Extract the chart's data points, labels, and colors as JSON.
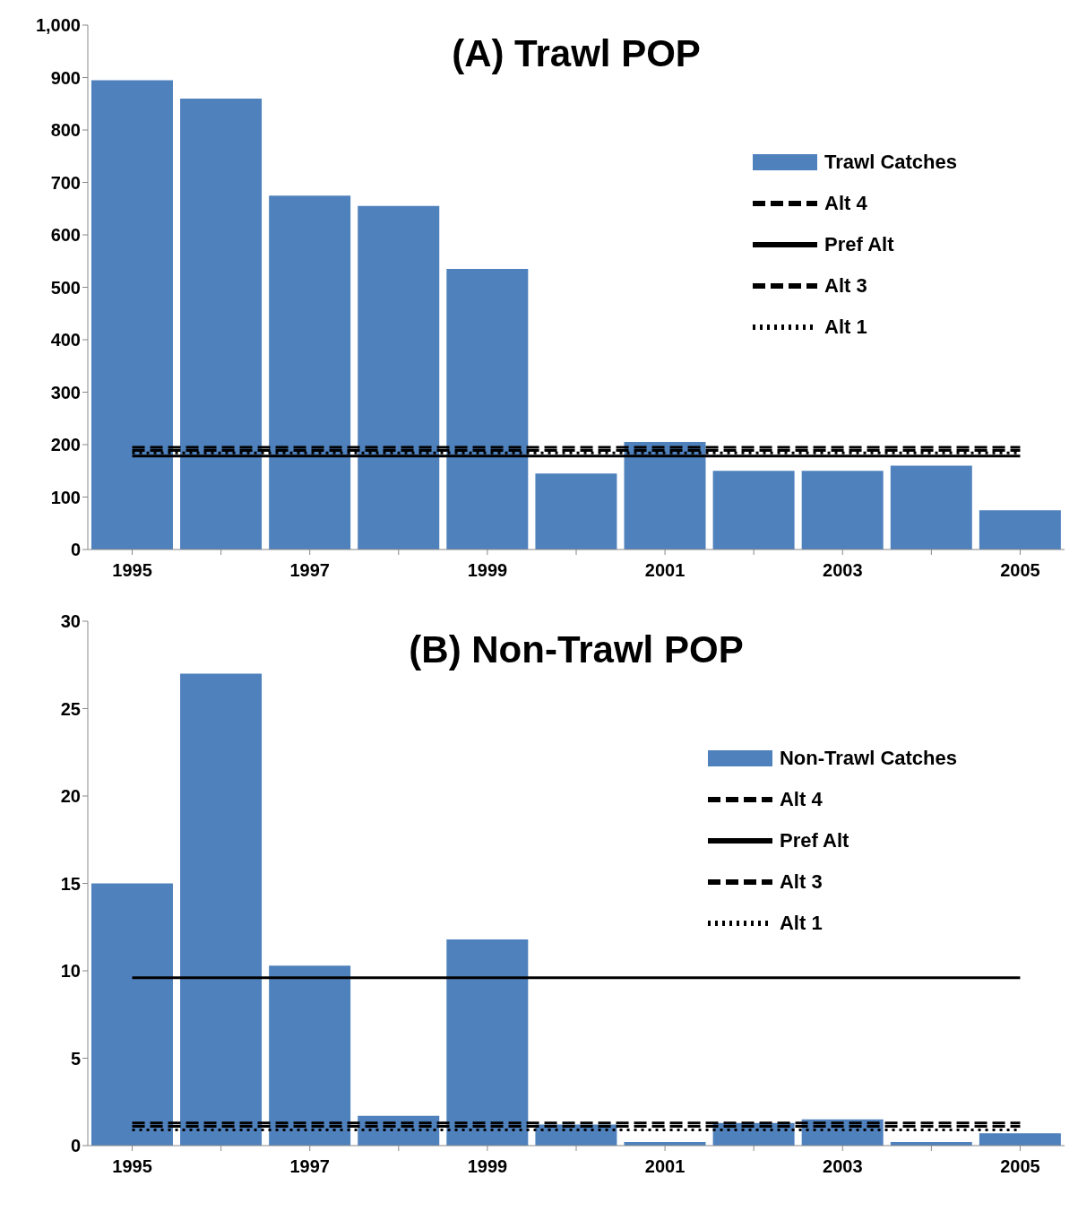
{
  "chart_data": [
    {
      "type": "bar",
      "title": "(A) Trawl POP",
      "categories": [
        "1995",
        null,
        "1997",
        null,
        "1999",
        null,
        "2001",
        null,
        "2003",
        null,
        "2005"
      ],
      "series": [
        {
          "name": "Trawl Catches",
          "color": "#4f81bd",
          "values": [
            895,
            860,
            675,
            655,
            535,
            145,
            205,
            150,
            150,
            160,
            75
          ]
        },
        {
          "name": "Alt 4",
          "type": "line",
          "color": "#000000",
          "line_style": "dashed",
          "values": [
            195,
            195,
            195,
            195,
            195,
            195,
            195,
            195,
            195,
            195,
            195
          ]
        },
        {
          "name": "Pref Alt",
          "type": "line",
          "color": "#000000",
          "line_style": "solid",
          "values": [
            178,
            178,
            178,
            178,
            178,
            178,
            178,
            178,
            178,
            178,
            178
          ]
        },
        {
          "name": "Alt 3",
          "type": "line",
          "color": "#000000",
          "line_style": "dashed",
          "values": [
            189,
            189,
            189,
            189,
            189,
            189,
            189,
            189,
            189,
            189,
            189
          ]
        },
        {
          "name": "Alt 1",
          "type": "line",
          "color": "#000000",
          "line_style": "dotted",
          "values": [
            184,
            184,
            184,
            184,
            184,
            184,
            184,
            184,
            184,
            184,
            184
          ]
        }
      ],
      "ylim": [
        0,
        1000
      ],
      "yticks": [
        0,
        100,
        200,
        300,
        400,
        500,
        600,
        700,
        800,
        900,
        {
          "value": 1000,
          "label": "1,000"
        }
      ],
      "grid": false,
      "legend": "right",
      "marker": "none"
    },
    {
      "type": "bar",
      "title": "(B) Non-Trawl POP",
      "categories": [
        "1995",
        null,
        "1997",
        null,
        "1999",
        null,
        "2001",
        null,
        "2003",
        null,
        "2005"
      ],
      "series": [
        {
          "name": "Non-Trawl Catches",
          "color": "#4f81bd",
          "values": [
            15,
            27,
            10.3,
            1.7,
            11.8,
            1.2,
            0.2,
            1.3,
            1.5,
            0.2,
            0.7
          ]
        },
        {
          "name": "Alt 4",
          "type": "line",
          "color": "#000000",
          "line_style": "dashed",
          "values": [
            1.3,
            1.3,
            1.3,
            1.3,
            1.3,
            1.3,
            1.3,
            1.3,
            1.3,
            1.3,
            1.3
          ]
        },
        {
          "name": "Pref Alt",
          "type": "line",
          "color": "#000000",
          "line_style": "solid",
          "values": [
            9.6,
            9.6,
            9.6,
            9.6,
            9.6,
            9.6,
            9.6,
            9.6,
            9.6,
            9.6,
            9.6
          ]
        },
        {
          "name": "Alt 3",
          "type": "line",
          "color": "#000000",
          "line_style": "dashed",
          "values": [
            1.1,
            1.1,
            1.1,
            1.1,
            1.1,
            1.1,
            1.1,
            1.1,
            1.1,
            1.1,
            1.1
          ]
        },
        {
          "name": "Alt 1",
          "type": "line",
          "color": "#000000",
          "line_style": "dotted",
          "values": [
            0.9,
            0.9,
            0.9,
            0.9,
            0.9,
            0.9,
            0.9,
            0.9,
            0.9,
            0.9,
            0.9
          ]
        }
      ],
      "ylim": [
        0,
        30
      ],
      "yticks": [
        0,
        5,
        10,
        15,
        20,
        25,
        30
      ],
      "grid": false,
      "legend": "right",
      "marker": "none"
    }
  ]
}
